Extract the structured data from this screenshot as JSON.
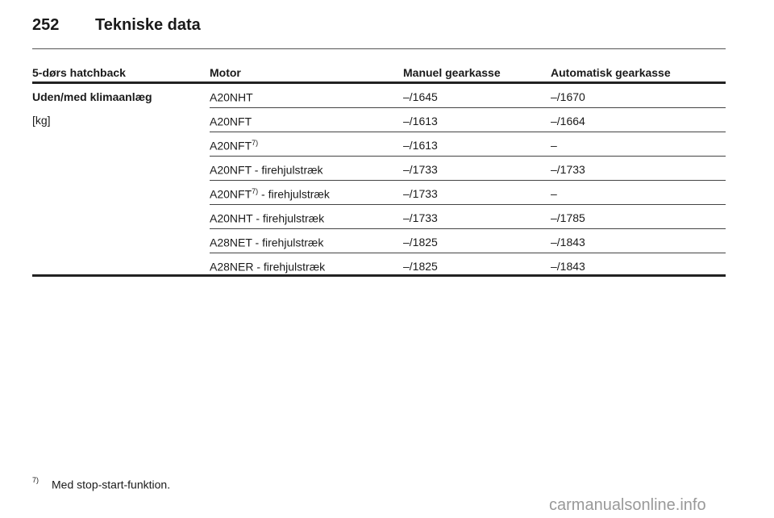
{
  "header": {
    "page_number": "252",
    "title": "Tekniske data"
  },
  "table": {
    "columns": [
      "5-dørs hatchback",
      "Motor",
      "Manuel gearkasse",
      "Automatisk gearkasse"
    ],
    "group_label": "Uden/med klimaanlæg",
    "unit": "[kg]",
    "rows": [
      {
        "motor": "A20NHT",
        "sup": "",
        "suffix": "",
        "manual": "–/1645",
        "auto": "–/1670"
      },
      {
        "motor": "A20NFT",
        "sup": "",
        "suffix": "",
        "manual": "–/1613",
        "auto": "–/1664"
      },
      {
        "motor": "A20NFT",
        "sup": "7)",
        "suffix": "",
        "manual": "–/1613",
        "auto": "–"
      },
      {
        "motor": "A20NFT - firehjulstræk",
        "sup": "",
        "suffix": "",
        "manual": "–/1733",
        "auto": "–/1733"
      },
      {
        "motor": "A20NFT",
        "sup": "7)",
        "suffix": " - firehjulstræk",
        "manual": "–/1733",
        "auto": "–"
      },
      {
        "motor": "A20NHT - firehjulstræk",
        "sup": "",
        "suffix": "",
        "manual": "–/1733",
        "auto": "–/1785"
      },
      {
        "motor": "A28NET - firehjulstræk",
        "sup": "",
        "suffix": "",
        "manual": "–/1825",
        "auto": "–/1843"
      },
      {
        "motor": "A28NER - firehjulstræk",
        "sup": "",
        "suffix": "",
        "manual": "–/1825",
        "auto": "–/1843"
      }
    ]
  },
  "footnote": {
    "mark": "7)",
    "text": "Med stop-start-funktion."
  },
  "watermark": "carmanualsonline.info"
}
